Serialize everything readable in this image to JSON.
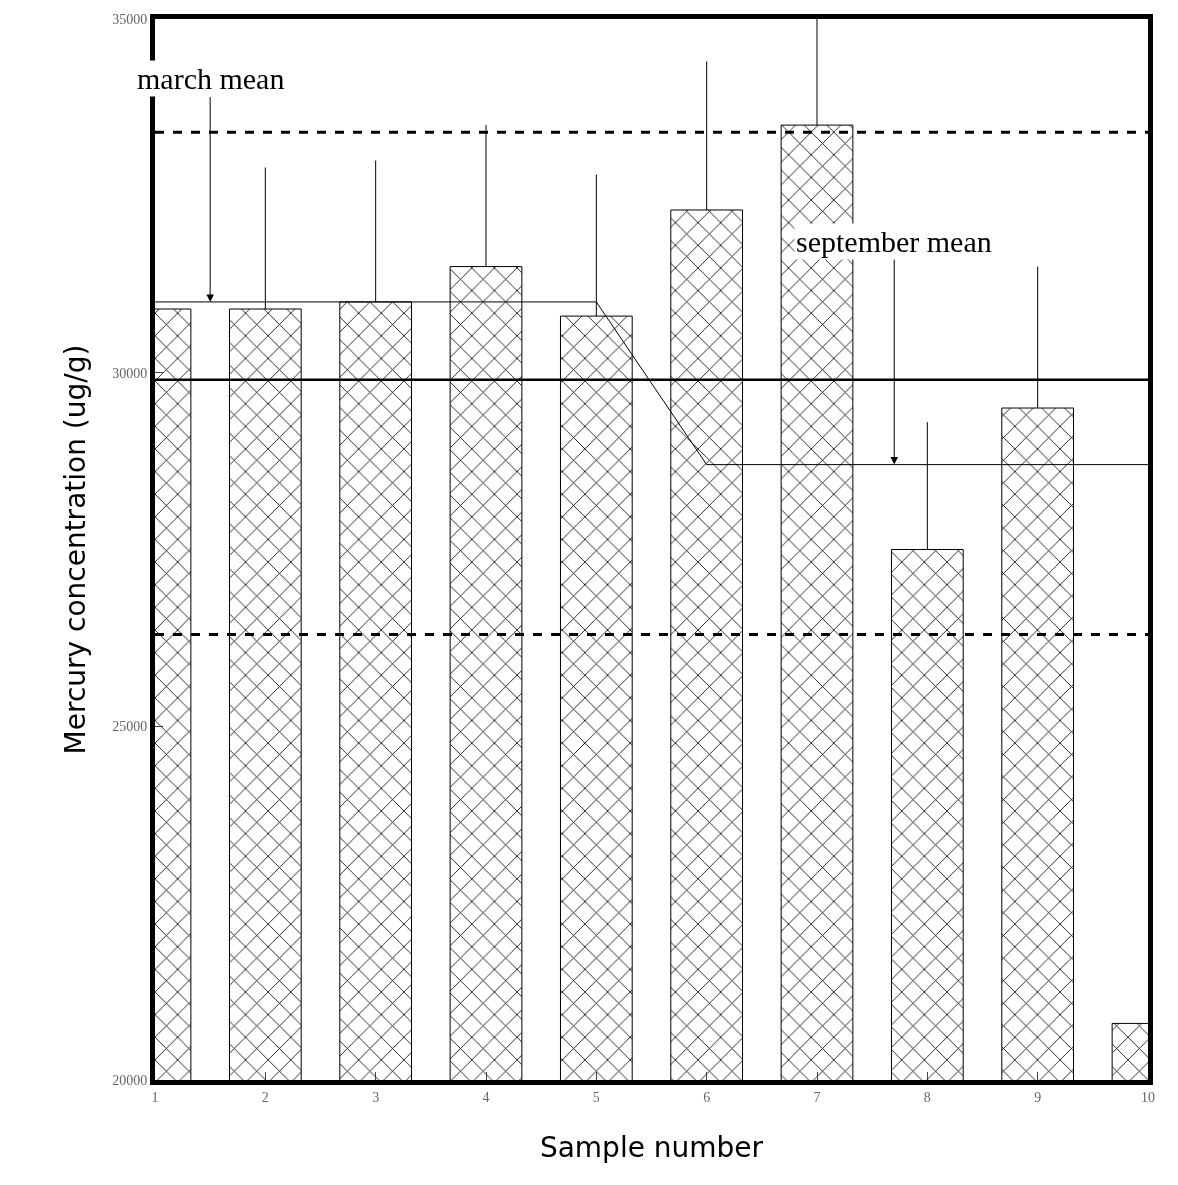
{
  "chart_data": {
    "type": "bar",
    "xlabel": "Sample number",
    "ylabel": "Mercury concentration (ug/g)",
    "x": [
      1,
      2,
      3,
      4,
      5,
      6,
      7,
      8,
      9,
      10
    ],
    "values": [
      30900,
      30900,
      31000,
      31500,
      30800,
      32300,
      33500,
      27500,
      29500,
      20800
    ],
    "errors": [
      null,
      [
        30900,
        32900
      ],
      [
        31000,
        33000
      ],
      [
        31500,
        33500
      ],
      [
        30800,
        32800
      ],
      [
        32300,
        34400
      ],
      [
        33500,
        35000
      ],
      [
        27500,
        29300
      ],
      [
        29500,
        31500
      ],
      null
    ],
    "color": "#000000",
    "series": [
      {
        "type": "line",
        "x": [
          1,
          5,
          6,
          10
        ],
        "values": [
          31000,
          31000,
          28700,
          28700
        ],
        "color": "#000000"
      }
    ],
    "ref_lines": [
      {
        "axis": "y",
        "value": 33400,
        "line_style": "dashed",
        "color": "#000000"
      },
      {
        "axis": "y",
        "value": 29900,
        "line_style": "solid",
        "color": "#000000"
      },
      {
        "axis": "y",
        "value": 26300,
        "line_style": "dashed",
        "color": "#000000"
      }
    ],
    "annotations": [
      {
        "text": "march mean",
        "x": 1.5,
        "y": 31000
      },
      {
        "text": "september mean",
        "x": 7.7,
        "y": 28700
      }
    ],
    "xlim": [
      1,
      10
    ],
    "xticks": [
      1,
      2,
      3,
      4,
      5,
      6,
      7,
      8,
      9,
      10
    ],
    "ylim": [
      20000,
      35000
    ],
    "yticks": [
      20000,
      25000,
      30000,
      35000
    ]
  }
}
